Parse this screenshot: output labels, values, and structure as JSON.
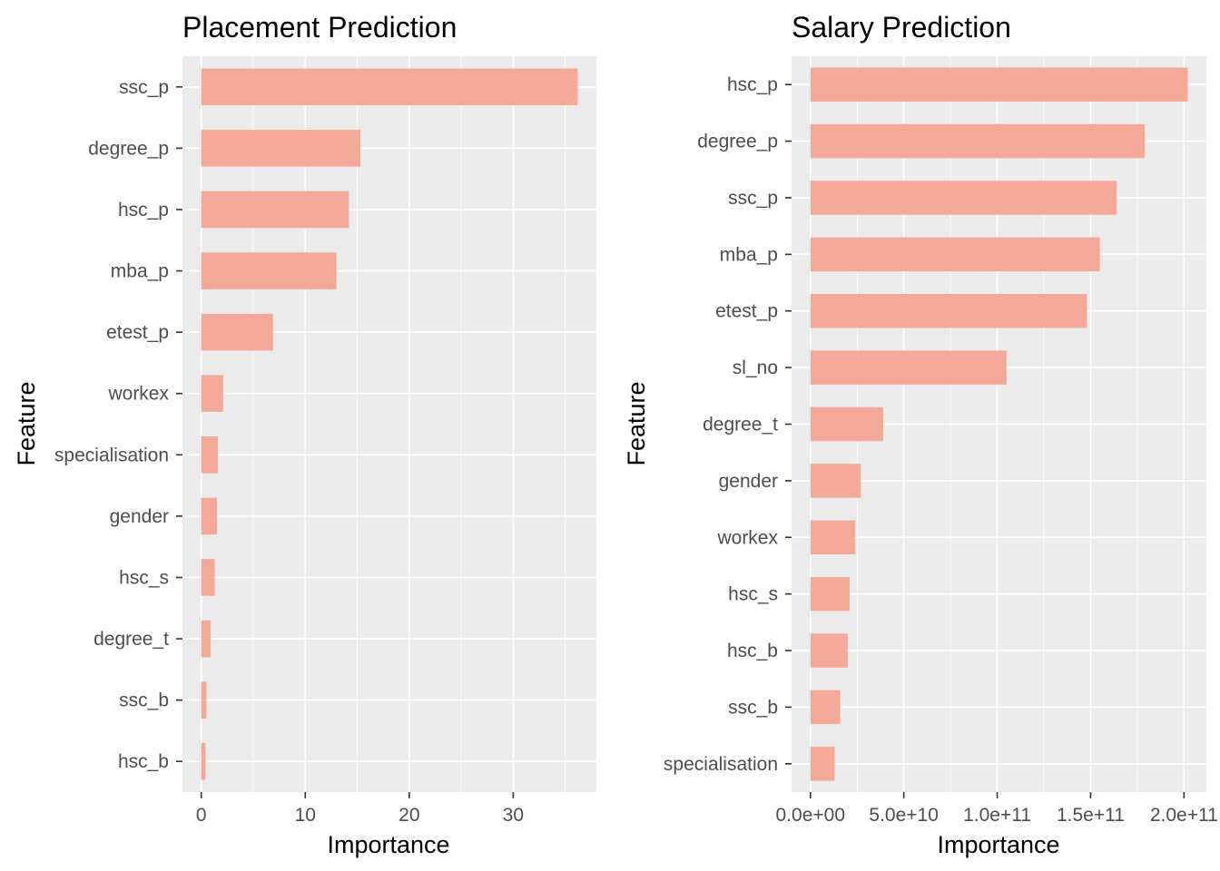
{
  "chart_data": [
    {
      "type": "bar",
      "orientation": "horizontal",
      "title": "Placement Prediction",
      "xlabel": "Importance",
      "ylabel": "Feature",
      "categories": [
        "ssc_p",
        "degree_p",
        "hsc_p",
        "mba_p",
        "etest_p",
        "workex",
        "specialisation",
        "gender",
        "hsc_s",
        "degree_t",
        "ssc_b",
        "hsc_b"
      ],
      "values": [
        36.2,
        15.3,
        14.2,
        13.0,
        6.9,
        2.1,
        1.6,
        1.5,
        1.3,
        0.9,
        0.5,
        0.4
      ],
      "xticks": [
        "0",
        "10",
        "20",
        "30"
      ],
      "xtick_values": [
        0,
        10,
        20,
        30
      ],
      "xlim": [
        -1.81,
        38.0
      ],
      "grid": true,
      "bar_color": "#f4a896"
    },
    {
      "type": "bar",
      "orientation": "horizontal",
      "title": "Salary Prediction",
      "xlabel": "Importance",
      "ylabel": "Feature",
      "categories": [
        "hsc_p",
        "degree_p",
        "ssc_p",
        "mba_p",
        "etest_p",
        "sl_no",
        "degree_t",
        "gender",
        "workex",
        "hsc_s",
        "hsc_b",
        "ssc_b",
        "specialisation"
      ],
      "values": [
        202000000000.0,
        179000000000.0,
        164000000000.0,
        155000000000.0,
        148000000000.0,
        105000000000.0,
        39000000000.0,
        27000000000.0,
        24000000000.0,
        21000000000.0,
        20000000000.0,
        16000000000.0,
        13000000000.0
      ],
      "xticks": [
        "0.0e+00",
        "5.0e+10",
        "1.0e+11",
        "1.5e+11",
        "2.0e+11"
      ],
      "xtick_values": [
        0,
        50000000000.0,
        100000000000.0,
        150000000000.0,
        200000000000.0
      ],
      "xlim": [
        -10100000000.0,
        212000000000.0
      ],
      "grid": true,
      "bar_color": "#f4a896"
    }
  ]
}
